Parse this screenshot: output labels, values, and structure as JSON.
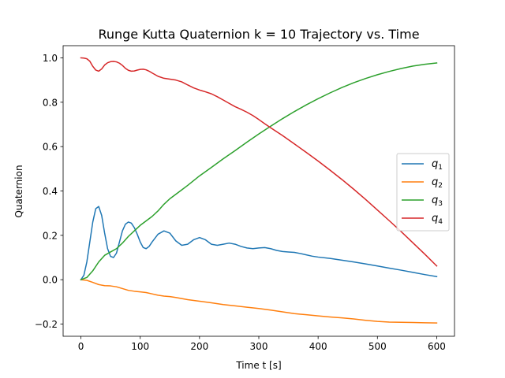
{
  "chart_data": {
    "type": "line",
    "title": "Runge Kutta Quaternion k = 10 Trajectory vs. Time",
    "xlabel": "Time t [s]",
    "ylabel": "Quaternion",
    "xlim": [
      -30,
      630
    ],
    "ylim": [
      -0.255,
      1.055
    ],
    "xticks": [
      0,
      100,
      200,
      300,
      400,
      500,
      600
    ],
    "yticks": [
      -0.2,
      0.0,
      0.2,
      0.4,
      0.6,
      0.8,
      1.0
    ],
    "xtick_labels": [
      "0",
      "100",
      "200",
      "300",
      "400",
      "500",
      "600"
    ],
    "ytick_labels": [
      "−0.2",
      "0.0",
      "0.2",
      "0.4",
      "0.6",
      "0.8",
      "1.0"
    ],
    "grid": false,
    "legend_position": "center-right",
    "series": [
      {
        "name": "q",
        "subscript": "1",
        "color": "#1f77b4",
        "points": [
          [
            0,
            0
          ],
          [
            5,
            0.02
          ],
          [
            10,
            0.08
          ],
          [
            15,
            0.17
          ],
          [
            20,
            0.26
          ],
          [
            25,
            0.32
          ],
          [
            30,
            0.33
          ],
          [
            35,
            0.29
          ],
          [
            40,
            0.21
          ],
          [
            45,
            0.14
          ],
          [
            50,
            0.105
          ],
          [
            55,
            0.1
          ],
          [
            60,
            0.12
          ],
          [
            65,
            0.17
          ],
          [
            70,
            0.22
          ],
          [
            75,
            0.25
          ],
          [
            80,
            0.26
          ],
          [
            85,
            0.255
          ],
          [
            90,
            0.235
          ],
          [
            95,
            0.205
          ],
          [
            100,
            0.17
          ],
          [
            105,
            0.145
          ],
          [
            110,
            0.14
          ],
          [
            115,
            0.15
          ],
          [
            120,
            0.17
          ],
          [
            130,
            0.205
          ],
          [
            140,
            0.22
          ],
          [
            150,
            0.21
          ],
          [
            160,
            0.175
          ],
          [
            170,
            0.155
          ],
          [
            180,
            0.16
          ],
          [
            190,
            0.18
          ],
          [
            200,
            0.19
          ],
          [
            210,
            0.18
          ],
          [
            220,
            0.16
          ],
          [
            230,
            0.155
          ],
          [
            240,
            0.16
          ],
          [
            250,
            0.165
          ],
          [
            260,
            0.16
          ],
          [
            270,
            0.15
          ],
          [
            280,
            0.143
          ],
          [
            290,
            0.14
          ],
          [
            300,
            0.143
          ],
          [
            310,
            0.145
          ],
          [
            320,
            0.14
          ],
          [
            330,
            0.132
          ],
          [
            340,
            0.127
          ],
          [
            350,
            0.125
          ],
          [
            360,
            0.123
          ],
          [
            370,
            0.118
          ],
          [
            380,
            0.112
          ],
          [
            390,
            0.106
          ],
          [
            400,
            0.102
          ],
          [
            420,
            0.096
          ],
          [
            440,
            0.088
          ],
          [
            460,
            0.08
          ],
          [
            480,
            0.071
          ],
          [
            500,
            0.062
          ],
          [
            520,
            0.052
          ],
          [
            540,
            0.043
          ],
          [
            560,
            0.033
          ],
          [
            580,
            0.023
          ],
          [
            600,
            0.014
          ]
        ]
      },
      {
        "name": "q",
        "subscript": "2",
        "color": "#ff7f0e",
        "points": [
          [
            0,
            0
          ],
          [
            10,
            -0.003
          ],
          [
            20,
            -0.012
          ],
          [
            30,
            -0.022
          ],
          [
            40,
            -0.027
          ],
          [
            50,
            -0.028
          ],
          [
            60,
            -0.032
          ],
          [
            70,
            -0.04
          ],
          [
            80,
            -0.048
          ],
          [
            90,
            -0.052
          ],
          [
            100,
            -0.055
          ],
          [
            110,
            -0.058
          ],
          [
            120,
            -0.064
          ],
          [
            130,
            -0.07
          ],
          [
            140,
            -0.074
          ],
          [
            150,
            -0.076
          ],
          [
            160,
            -0.08
          ],
          [
            170,
            -0.085
          ],
          [
            180,
            -0.09
          ],
          [
            200,
            -0.097
          ],
          [
            220,
            -0.104
          ],
          [
            240,
            -0.112
          ],
          [
            260,
            -0.118
          ],
          [
            280,
            -0.124
          ],
          [
            300,
            -0.13
          ],
          [
            320,
            -0.137
          ],
          [
            340,
            -0.145
          ],
          [
            360,
            -0.153
          ],
          [
            380,
            -0.158
          ],
          [
            400,
            -0.163
          ],
          [
            420,
            -0.168
          ],
          [
            440,
            -0.172
          ],
          [
            460,
            -0.177
          ],
          [
            480,
            -0.183
          ],
          [
            500,
            -0.188
          ],
          [
            520,
            -0.191
          ],
          [
            540,
            -0.192
          ],
          [
            560,
            -0.193
          ],
          [
            580,
            -0.194
          ],
          [
            600,
            -0.195
          ]
        ]
      },
      {
        "name": "q",
        "subscript": "3",
        "color": "#2ca02c",
        "points": [
          [
            0,
            0
          ],
          [
            10,
            0.01
          ],
          [
            20,
            0.04
          ],
          [
            30,
            0.08
          ],
          [
            40,
            0.11
          ],
          [
            50,
            0.125
          ],
          [
            60,
            0.14
          ],
          [
            70,
            0.165
          ],
          [
            80,
            0.195
          ],
          [
            90,
            0.22
          ],
          [
            100,
            0.245
          ],
          [
            110,
            0.265
          ],
          [
            120,
            0.285
          ],
          [
            130,
            0.31
          ],
          [
            140,
            0.34
          ],
          [
            150,
            0.365
          ],
          [
            160,
            0.385
          ],
          [
            170,
            0.405
          ],
          [
            180,
            0.425
          ],
          [
            200,
            0.468
          ],
          [
            220,
            0.506
          ],
          [
            240,
            0.545
          ],
          [
            260,
            0.582
          ],
          [
            280,
            0.62
          ],
          [
            300,
            0.657
          ],
          [
            320,
            0.692
          ],
          [
            340,
            0.726
          ],
          [
            360,
            0.758
          ],
          [
            380,
            0.788
          ],
          [
            400,
            0.816
          ],
          [
            420,
            0.842
          ],
          [
            440,
            0.866
          ],
          [
            460,
            0.888
          ],
          [
            480,
            0.907
          ],
          [
            500,
            0.924
          ],
          [
            520,
            0.939
          ],
          [
            540,
            0.952
          ],
          [
            560,
            0.963
          ],
          [
            580,
            0.971
          ],
          [
            600,
            0.977
          ]
        ]
      },
      {
        "name": "q",
        "subscript": "4",
        "color": "#d62728",
        "points": [
          [
            0,
            1.0
          ],
          [
            5,
            0.999
          ],
          [
            10,
            0.996
          ],
          [
            15,
            0.985
          ],
          [
            20,
            0.962
          ],
          [
            25,
            0.945
          ],
          [
            30,
            0.94
          ],
          [
            35,
            0.95
          ],
          [
            40,
            0.968
          ],
          [
            45,
            0.978
          ],
          [
            50,
            0.983
          ],
          [
            55,
            0.984
          ],
          [
            60,
            0.982
          ],
          [
            65,
            0.976
          ],
          [
            70,
            0.966
          ],
          [
            75,
            0.953
          ],
          [
            80,
            0.944
          ],
          [
            85,
            0.94
          ],
          [
            90,
            0.941
          ],
          [
            95,
            0.945
          ],
          [
            100,
            0.948
          ],
          [
            105,
            0.949
          ],
          [
            110,
            0.946
          ],
          [
            115,
            0.94
          ],
          [
            120,
            0.932
          ],
          [
            130,
            0.917
          ],
          [
            140,
            0.908
          ],
          [
            150,
            0.904
          ],
          [
            160,
            0.9
          ],
          [
            170,
            0.892
          ],
          [
            180,
            0.878
          ],
          [
            190,
            0.865
          ],
          [
            200,
            0.855
          ],
          [
            210,
            0.847
          ],
          [
            220,
            0.838
          ],
          [
            230,
            0.825
          ],
          [
            240,
            0.81
          ],
          [
            250,
            0.795
          ],
          [
            260,
            0.78
          ],
          [
            270,
            0.768
          ],
          [
            280,
            0.755
          ],
          [
            290,
            0.74
          ],
          [
            300,
            0.722
          ],
          [
            310,
            0.703
          ],
          [
            320,
            0.685
          ],
          [
            340,
            0.65
          ],
          [
            360,
            0.612
          ],
          [
            380,
            0.574
          ],
          [
            400,
            0.535
          ],
          [
            420,
            0.494
          ],
          [
            440,
            0.452
          ],
          [
            460,
            0.408
          ],
          [
            480,
            0.362
          ],
          [
            500,
            0.314
          ],
          [
            520,
            0.266
          ],
          [
            540,
            0.217
          ],
          [
            560,
            0.166
          ],
          [
            580,
            0.115
          ],
          [
            600,
            0.062
          ]
        ]
      }
    ]
  }
}
